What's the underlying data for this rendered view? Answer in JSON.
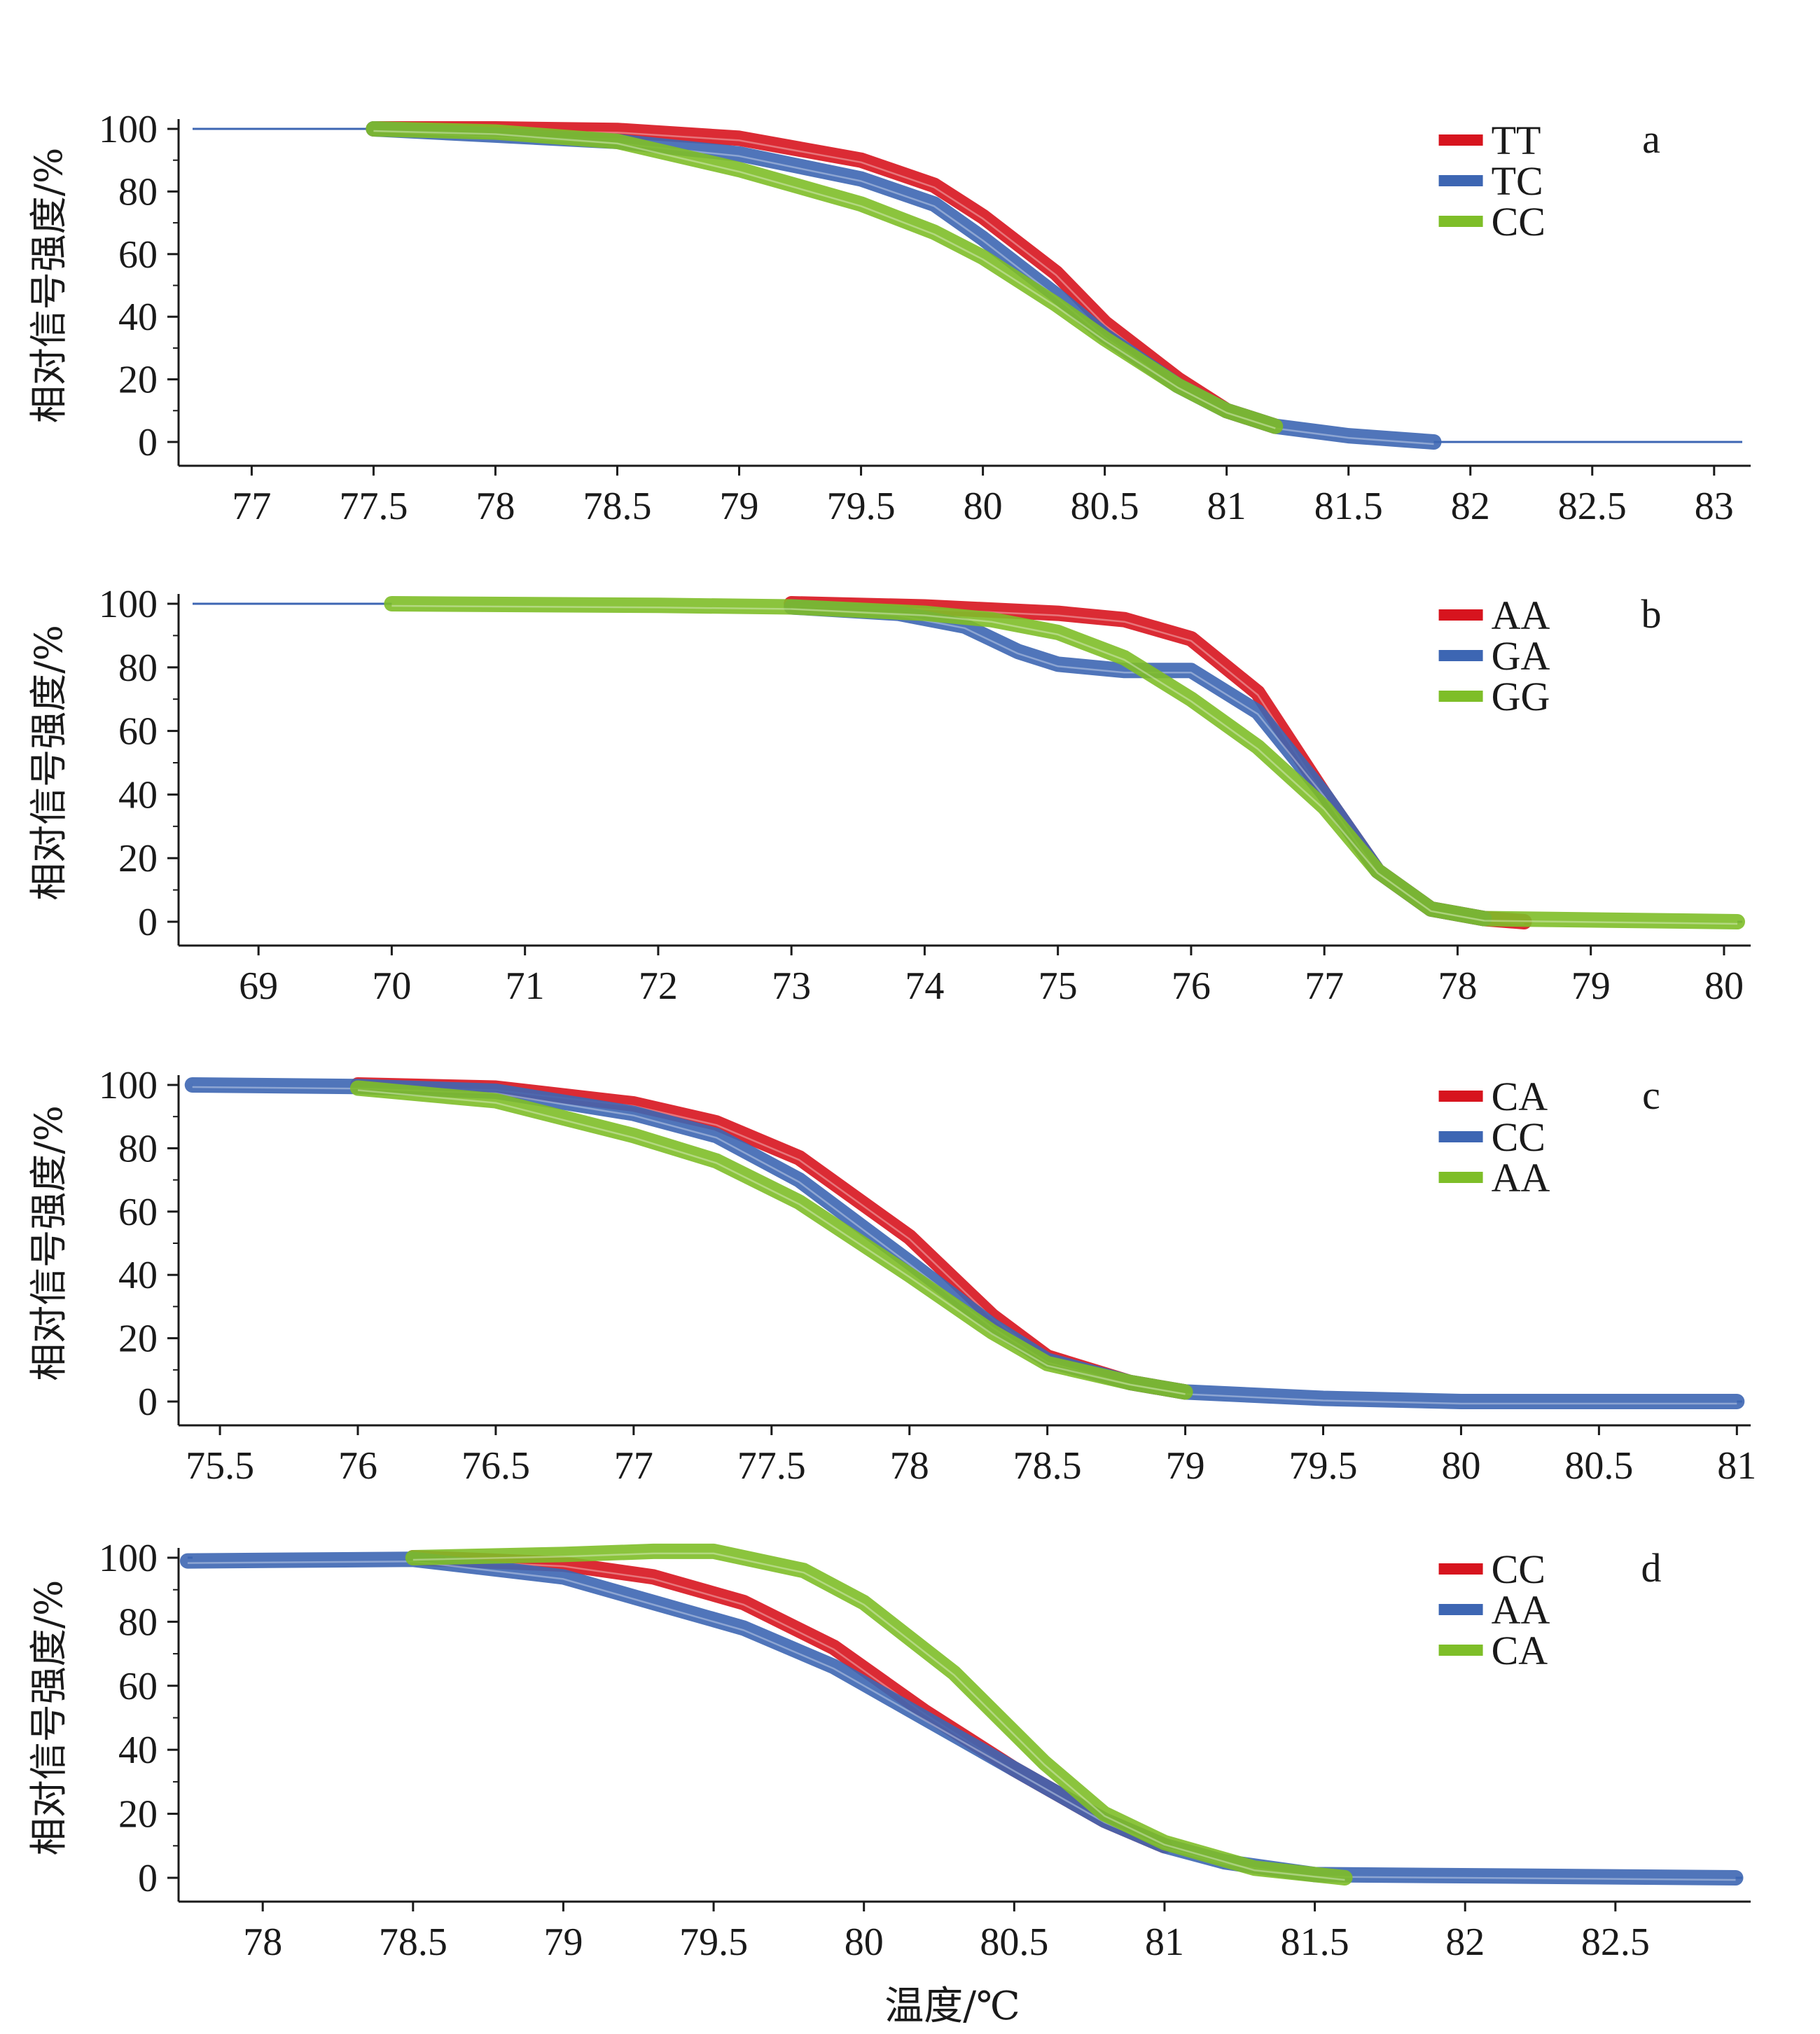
{
  "colors": {
    "red": "#d7141e",
    "blue": "#3d66b3",
    "green": "#7ebe28",
    "axis": "#1a1a1a",
    "baseline": "#3d66b3"
  },
  "y_title": "相对信号强度/%",
  "x_title": "温度/℃",
  "chart_data": [
    {
      "panel": "a",
      "type": "line",
      "xlim": [
        76.7,
        83.15
      ],
      "ylim": [
        0,
        100
      ],
      "x_ticks": [
        "77",
        "77.5",
        "78",
        "78.5",
        "79",
        "79.5",
        "80",
        "80.5",
        "81",
        "81.5",
        "82",
        "82.5",
        "83"
      ],
      "y_ticks": [
        "0",
        "20",
        "40",
        "60",
        "80",
        "100"
      ],
      "legend": [
        "TT",
        "TC",
        "CC"
      ],
      "series": [
        {
          "name": "TT",
          "color": "red",
          "x": [
            77.5,
            78,
            78.5,
            79,
            79.5,
            79.8,
            80,
            80.3,
            80.5,
            80.8,
            81,
            81.2
          ],
          "y": [
            100,
            100,
            99.5,
            97,
            90,
            82,
            72,
            54,
            38,
            20,
            10,
            5
          ]
        },
        {
          "name": "TC",
          "color": "blue",
          "x": [
            77.5,
            78,
            78.5,
            79,
            79.5,
            79.8,
            80,
            80.3,
            80.5,
            80.8,
            81,
            81.2,
            81.5,
            81.85
          ],
          "y": [
            100,
            98,
            96,
            92,
            84,
            76,
            65,
            47,
            34,
            18,
            10,
            5,
            2,
            0
          ]
        },
        {
          "name": "CC",
          "color": "green",
          "x": [
            77.5,
            78,
            78.5,
            79,
            79.5,
            79.8,
            80,
            80.3,
            80.5,
            80.8,
            81,
            81.2
          ],
          "y": [
            100,
            99,
            96,
            87,
            76,
            67,
            59,
            44,
            33,
            18,
            10,
            5
          ]
        }
      ]
    },
    {
      "panel": "b",
      "type": "line",
      "xlim": [
        68.4,
        80.2
      ],
      "ylim": [
        0,
        100
      ],
      "x_ticks": [
        "69",
        "70",
        "71",
        "72",
        "73",
        "74",
        "75",
        "76",
        "77",
        "78",
        "79",
        "80"
      ],
      "y_ticks": [
        "0",
        "20",
        "40",
        "60",
        "80",
        "100"
      ],
      "legend": [
        "AA",
        "GA",
        "GG"
      ],
      "series": [
        {
          "name": "AA",
          "color": "red",
          "x": [
            73,
            74,
            75,
            75.5,
            76,
            76.5,
            77,
            77.4,
            77.8,
            78.2,
            78.5
          ],
          "y": [
            100,
            99,
            97,
            95,
            89,
            72,
            40,
            16,
            4,
            1,
            0
          ]
        },
        {
          "name": "GA",
          "color": "blue",
          "x": [
            73,
            73.8,
            74.3,
            74.7,
            75,
            75.5,
            76,
            76.5,
            77,
            77.4,
            77.8,
            78.2
          ],
          "y": [
            99,
            97,
            93,
            85,
            81,
            79,
            79,
            66,
            40,
            16,
            4,
            1
          ]
        },
        {
          "name": "GG",
          "color": "green",
          "x": [
            70,
            72,
            73,
            74,
            74.5,
            75,
            75.5,
            76,
            76.5,
            77,
            77.4,
            77.8,
            78.2,
            80.1
          ],
          "y": [
            100,
            99.5,
            99,
            97,
            95,
            91,
            83,
            70,
            55,
            36,
            16,
            4,
            1,
            0
          ]
        }
      ]
    },
    {
      "panel": "c",
      "type": "line",
      "xlim": [
        75.35,
        81.05
      ],
      "ylim": [
        0,
        100
      ],
      "x_ticks": [
        "75.5",
        "76",
        "76.5",
        "77",
        "77.5",
        "78",
        "78.5",
        "79",
        "79.5",
        "80",
        "80.5",
        "81"
      ],
      "y_ticks": [
        "0",
        "20",
        "40",
        "60",
        "80",
        "100"
      ],
      "legend": [
        "CA",
        "CC",
        "AA"
      ],
      "series": [
        {
          "name": "CA",
          "color": "red",
          "x": [
            76,
            76.5,
            77,
            77.3,
            77.6,
            78,
            78.3,
            78.5,
            78.8,
            79
          ],
          "y": [
            100,
            99,
            94,
            88,
            77,
            52,
            27,
            14,
            6,
            3
          ]
        },
        {
          "name": "CC",
          "color": "blue",
          "x": [
            75.4,
            76,
            76.5,
            77,
            77.3,
            77.6,
            78,
            78.3,
            78.5,
            78.8,
            79,
            79.5,
            80,
            81
          ],
          "y": [
            100,
            99.5,
            98,
            91,
            84,
            70,
            44,
            24,
            13,
            6,
            3,
            1,
            0,
            0
          ]
        },
        {
          "name": "AA",
          "color": "green",
          "x": [
            76,
            76.5,
            77,
            77.3,
            77.6,
            78,
            78.3,
            78.5,
            78.8,
            79
          ],
          "y": [
            99,
            95,
            84,
            76,
            63,
            40,
            22,
            12,
            6,
            3
          ]
        }
      ]
    },
    {
      "panel": "d",
      "type": "line",
      "xlim": [
        77.72,
        82.95
      ],
      "ylim": [
        0,
        100
      ],
      "x_ticks": [
        "78",
        "78.5",
        "79",
        "79.5",
        "80",
        "80.5",
        "81",
        "81.5",
        "82",
        "82.5"
      ],
      "y_ticks": [
        "0",
        "20",
        "40",
        "60",
        "80",
        "100"
      ],
      "legend": [
        "CC",
        "AA",
        "CA"
      ],
      "series": [
        {
          "name": "CC",
          "color": "red",
          "x": [
            78.5,
            79,
            79.3,
            79.6,
            79.9,
            80.2,
            80.5,
            80.8,
            81
          ],
          "y": [
            100,
            98,
            94,
            86,
            72,
            52,
            34,
            18,
            10
          ]
        },
        {
          "name": "AA",
          "color": "blue",
          "x": [
            77.75,
            78.5,
            79,
            79.3,
            79.6,
            79.9,
            80.2,
            80.5,
            80.8,
            81,
            81.2,
            81.5,
            82.9
          ],
          "y": [
            99,
            99.5,
            94,
            86,
            78,
            66,
            50,
            34,
            18,
            10,
            5,
            1,
            0
          ]
        },
        {
          "name": "CA",
          "color": "green",
          "x": [
            78.5,
            79,
            79.3,
            79.5,
            79.8,
            80,
            80.3,
            80.6,
            80.8,
            81,
            81.3,
            81.6
          ],
          "y": [
            100,
            101,
            102,
            102,
            96,
            86,
            64,
            36,
            20,
            11,
            3,
            0
          ]
        }
      ]
    }
  ]
}
